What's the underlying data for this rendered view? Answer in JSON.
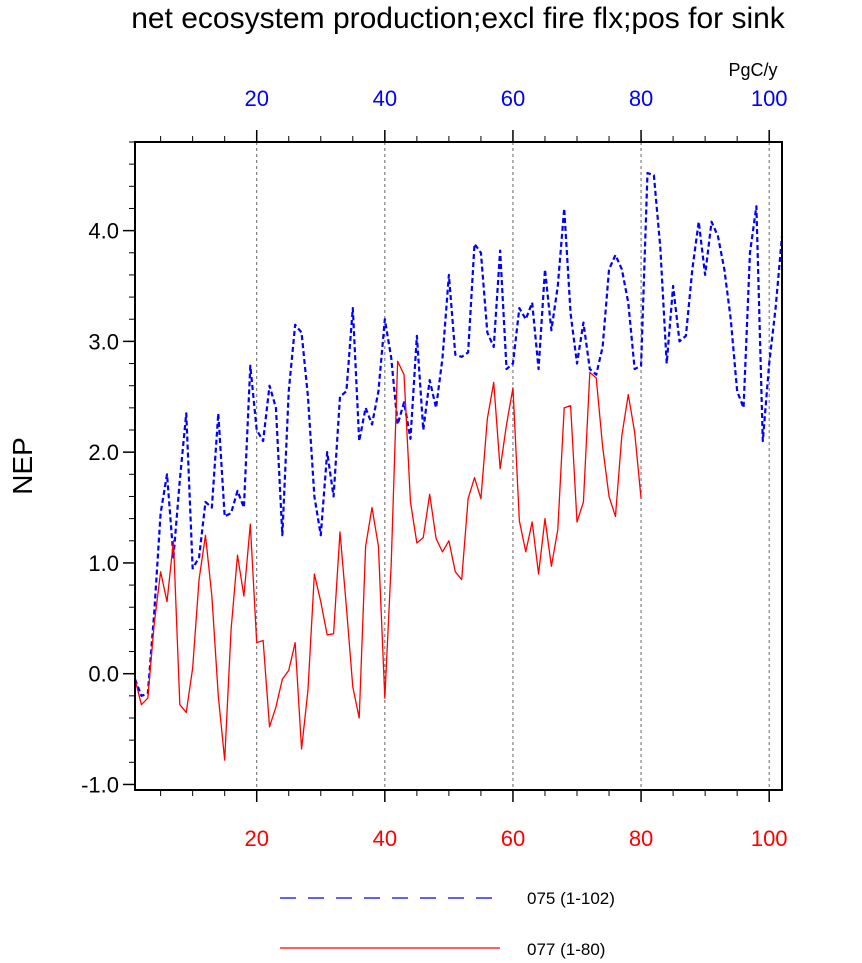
{
  "chart_data": {
    "type": "line",
    "title": "net ecosystem production;excl fire flx;pos for sink",
    "units": "PgC/y",
    "ylabel": "NEP",
    "ylim": [
      -1.05,
      4.8
    ],
    "yticks": [
      -1.0,
      0.0,
      1.0,
      2.0,
      3.0,
      4.0
    ],
    "ytick_labels": [
      "-1.0",
      "0.0",
      "1.0",
      "2.0",
      "3.0",
      "4.0"
    ],
    "x_top": {
      "range": [
        1,
        102
      ],
      "ticks": [
        20,
        40,
        60,
        80,
        100
      ],
      "tick_labels": [
        "20",
        "40",
        "60",
        "80",
        "100"
      ],
      "color": "#0000ff"
    },
    "x_bottom": {
      "range": [
        1,
        102
      ],
      "ticks": [
        20,
        40,
        60,
        80,
        100
      ],
      "tick_labels": [
        "20",
        "40",
        "60",
        "80",
        "100"
      ],
      "color": "#ff0000"
    },
    "vgrid": [
      20,
      40,
      60,
      80,
      100
    ],
    "legend_position": "bottom",
    "series": [
      {
        "name": "075 (1-102)",
        "color": "#0000ff",
        "style": "dashed",
        "x_start": 1,
        "values": [
          -0.05,
          -0.2,
          -0.18,
          0.55,
          1.45,
          1.8,
          1.05,
          1.75,
          2.35,
          0.95,
          1.05,
          1.55,
          1.5,
          2.35,
          1.42,
          1.45,
          1.65,
          1.5,
          2.78,
          2.2,
          2.1,
          2.6,
          2.4,
          1.25,
          2.55,
          3.15,
          3.08,
          2.5,
          1.6,
          1.25,
          2.0,
          1.6,
          2.5,
          2.55,
          3.3,
          2.1,
          2.4,
          2.25,
          2.55,
          3.2,
          2.85,
          2.25,
          2.45,
          2.12,
          3.05,
          2.2,
          2.65,
          2.4,
          2.85,
          3.6,
          2.88,
          2.86,
          2.9,
          3.88,
          3.8,
          3.08,
          2.95,
          3.82,
          2.75,
          2.8,
          3.3,
          3.2,
          3.35,
          2.75,
          3.65,
          3.1,
          3.5,
          4.2,
          3.25,
          2.8,
          3.17,
          2.75,
          2.7,
          2.95,
          3.65,
          3.78,
          3.65,
          3.35,
          2.75,
          2.78,
          4.52,
          4.5,
          3.85,
          2.8,
          3.5,
          3.0,
          3.05,
          3.65,
          4.08,
          3.6,
          4.08,
          3.95,
          3.65,
          3.2,
          2.55,
          2.4,
          3.8,
          4.22,
          2.1,
          2.8,
          3.3,
          3.95
        ]
      },
      {
        "name": "077 (1-80)",
        "color": "#ff0000",
        "style": "solid",
        "x_start": 1,
        "values": [
          -0.05,
          -0.28,
          -0.22,
          0.45,
          0.92,
          0.65,
          1.2,
          -0.28,
          -0.35,
          0.05,
          0.85,
          1.25,
          0.7,
          -0.2,
          -0.78,
          0.4,
          1.07,
          0.7,
          1.35,
          0.28,
          0.3,
          -0.48,
          -0.3,
          -0.05,
          0.03,
          0.28,
          -0.68,
          -0.15,
          0.9,
          0.65,
          0.35,
          0.36,
          1.28,
          0.6,
          -0.12,
          -0.4,
          1.15,
          1.5,
          1.15,
          -0.22,
          1.0,
          2.82,
          2.7,
          1.55,
          1.18,
          1.23,
          1.62,
          1.22,
          1.1,
          1.2,
          0.92,
          0.85,
          1.58,
          1.77,
          1.58,
          2.3,
          2.63,
          1.85,
          2.25,
          2.58,
          1.38,
          1.1,
          1.37,
          0.9,
          1.4,
          0.97,
          1.3,
          2.4,
          2.42,
          1.37,
          1.55,
          2.72,
          2.67,
          2.05,
          1.6,
          1.42,
          2.15,
          2.52,
          2.18,
          1.58
        ]
      }
    ]
  }
}
